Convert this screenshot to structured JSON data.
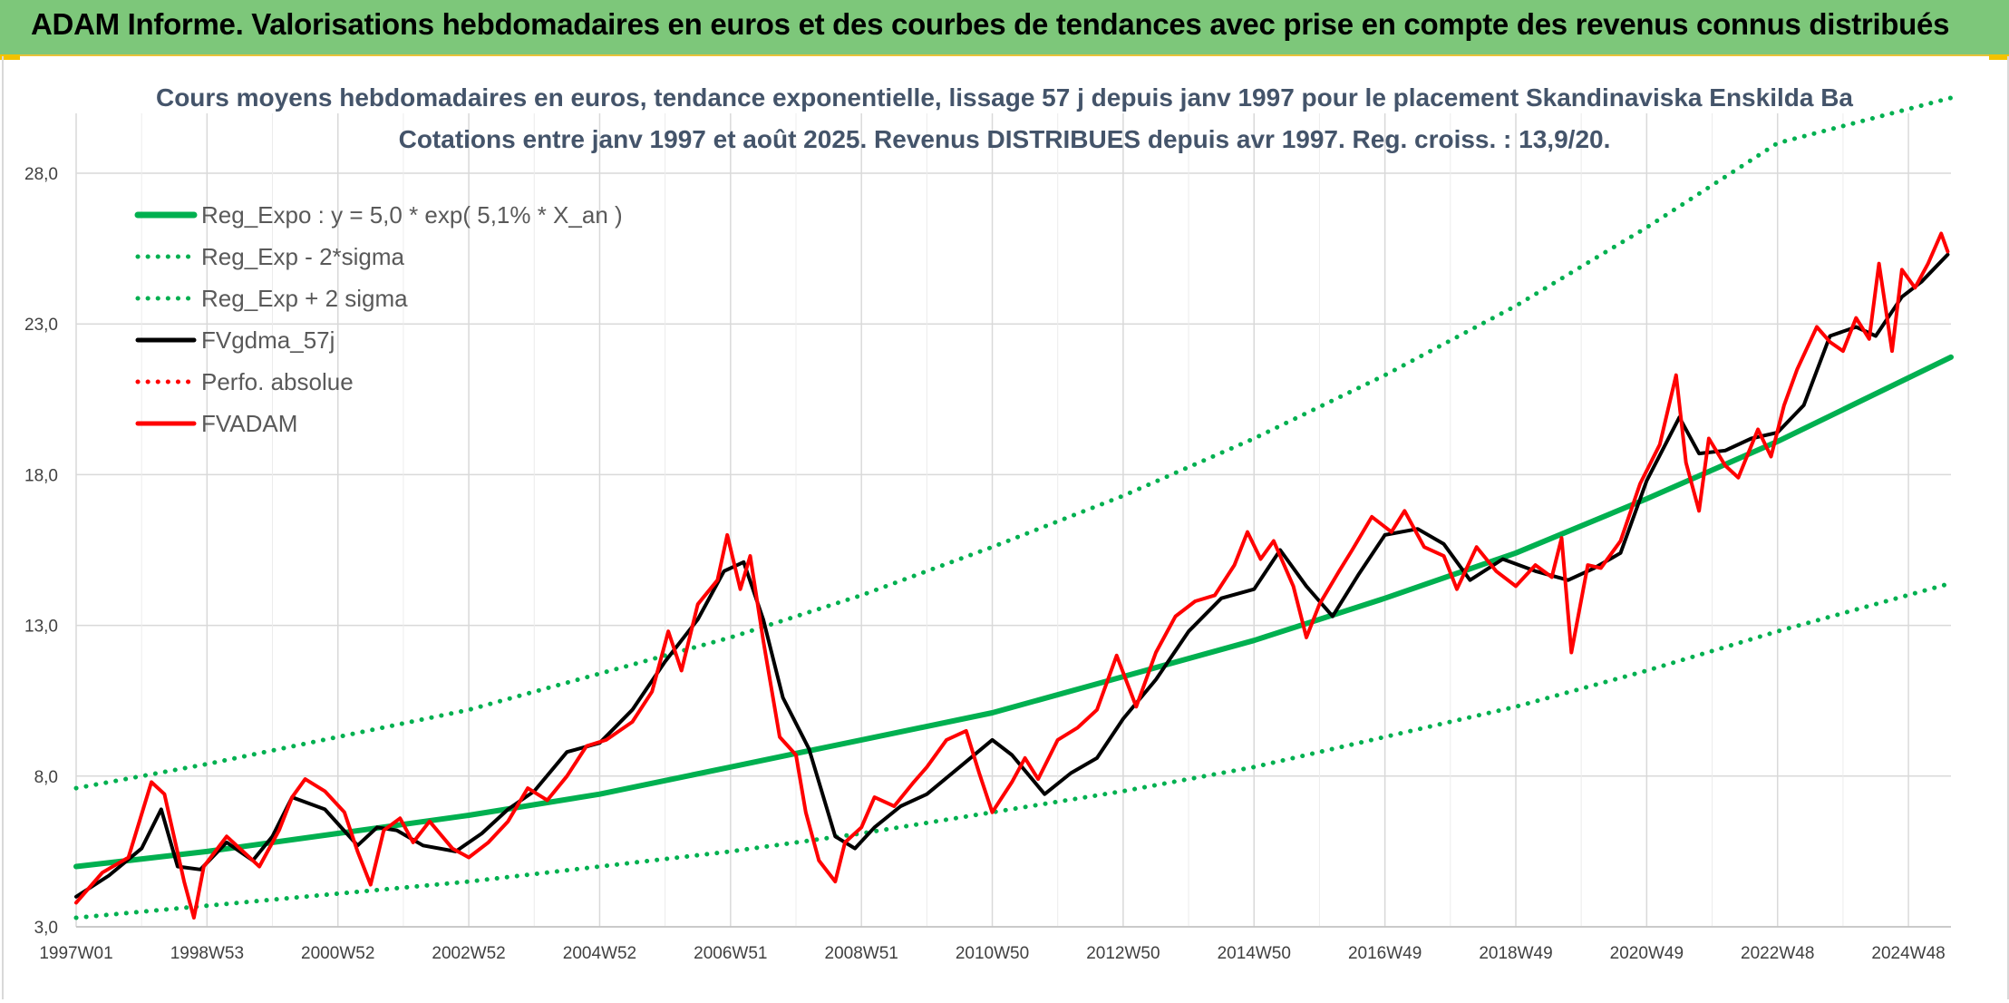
{
  "header": {
    "title": "ADAM Informe. Valorisations hebdomadaires en euros et des courbes de tendances avec prise en compte des revenus connus distribués"
  },
  "colors": {
    "banner": "#7dc77a",
    "trend": "#00b050",
    "bands": "#00b050",
    "smoothed": "#000000",
    "absolute_perf": "#ff0000",
    "price": "#ff0000",
    "title_text": "#44546a"
  },
  "chart_data": {
    "type": "line",
    "title": "Cours moyens hebdomadaires en euros, tendance exponentielle, lissage 57 j depuis janv 1997 pour le placement Skandinaviska Enskilda Ba",
    "subtitle": "Cotations entre janv 1997 et août 2025. Revenus DISTRIBUES depuis avr 1997. Reg. croiss. : 13,9/20.",
    "xlabel": "",
    "ylabel": "",
    "x_range": [
      1997.0,
      2025.65
    ],
    "ylim": [
      3.0,
      30.5
    ],
    "y_ticks": [
      3.0,
      8.0,
      13.0,
      18.0,
      23.0,
      28.0
    ],
    "y_tick_labels": [
      "3,0",
      "8,0",
      "13,0",
      "18,0",
      "23,0",
      "28,0"
    ],
    "x_ticks": [
      1997.0,
      1999.0,
      2001.0,
      2003.0,
      2005.0,
      2007.0,
      2009.0,
      2011.0,
      2013.0,
      2015.0,
      2017.0,
      2019.0,
      2021.0,
      2023.0,
      2025.0
    ],
    "x_tick_labels": [
      "1997W01",
      "1998W53",
      "2000W52",
      "2002W52",
      "2004W52",
      "2006W51",
      "2008W51",
      "2010W50",
      "2012W50",
      "2014W50",
      "2016W49",
      "2018W49",
      "2020W49",
      "2022W48",
      "2024W48"
    ],
    "grid": true,
    "legend_position": "top-left",
    "legend": [
      {
        "label": "Reg_Expo : y = 5,0 * exp( 5,1% *  X_an )",
        "style": "solid-thick",
        "color": "#00b050"
      },
      {
        "label": "Reg_Exp - 2*sigma",
        "style": "dotted",
        "color": "#00b050"
      },
      {
        "label": "Reg_Exp + 2 sigma",
        "style": "dotted",
        "color": "#00b050"
      },
      {
        "label": "FVgdma_57j",
        "style": "solid",
        "color": "#000000"
      },
      {
        "label": "Perfo. absolue",
        "style": "dotted",
        "color": "#ff0000"
      },
      {
        "label": "FVADAM",
        "style": "solid",
        "color": "#ff0000"
      }
    ],
    "series": [
      {
        "name": "Reg_Expo : y = 5,0 * exp( 5,1% *  X_an )",
        "x": [
          1997.0,
          1999.0,
          2001.0,
          2003.0,
          2005.0,
          2007.0,
          2009.0,
          2011.0,
          2013.0,
          2015.0,
          2017.0,
          2019.0,
          2021.0,
          2023.0,
          2025.65
        ],
        "y": [
          5.0,
          5.5,
          6.1,
          6.7,
          7.4,
          8.3,
          9.2,
          10.1,
          11.3,
          12.5,
          13.9,
          15.4,
          17.2,
          19.1,
          21.9
        ]
      },
      {
        "name": "Reg_Exp - 2*sigma",
        "x": [
          1997.0,
          1999.0,
          2001.0,
          2003.0,
          2005.0,
          2007.0,
          2009.0,
          2011.0,
          2013.0,
          2015.0,
          2017.0,
          2019.0,
          2021.0,
          2023.0,
          2025.65
        ],
        "y": [
          3.3,
          3.7,
          4.1,
          4.5,
          5.0,
          5.5,
          6.1,
          6.8,
          7.5,
          8.3,
          9.3,
          10.3,
          11.5,
          12.8,
          14.4
        ]
      },
      {
        "name": "Reg_Exp + 2 sigma",
        "x": [
          1997.0,
          1999.0,
          2001.0,
          2003.0,
          2005.0,
          2007.0,
          2009.0,
          2011.0,
          2013.0,
          2015.0,
          2017.0,
          2019.0,
          2021.0,
          2023.0,
          2025.65
        ],
        "y": [
          7.6,
          8.4,
          9.3,
          10.2,
          11.4,
          12.6,
          14.0,
          15.6,
          17.3,
          19.2,
          21.3,
          23.6,
          26.2,
          29.0,
          30.5
        ]
      },
      {
        "name": "FVgdma_57j",
        "x": [
          1997.0,
          1997.5,
          1998.0,
          1998.3,
          1998.55,
          1998.9,
          1999.3,
          1999.7,
          2000.0,
          2000.3,
          2000.8,
          2001.3,
          2001.6,
          2001.9,
          2002.3,
          2002.8,
          2003.2,
          2003.6,
          2004.0,
          2004.5,
          2005.0,
          2005.5,
          2006.0,
          2006.5,
          2006.9,
          2007.2,
          2007.5,
          2007.8,
          2008.2,
          2008.6,
          2008.9,
          2009.2,
          2009.6,
          2010.0,
          2010.5,
          2011.0,
          2011.3,
          2011.8,
          2012.2,
          2012.6,
          2013.0,
          2013.5,
          2014.0,
          2014.5,
          2015.0,
          2015.4,
          2015.8,
          2016.2,
          2016.6,
          2017.0,
          2017.5,
          2017.9,
          2018.3,
          2018.8,
          2019.3,
          2019.8,
          2020.2,
          2020.6,
          2021.0,
          2021.5,
          2021.8,
          2022.2,
          2022.6,
          2023.0,
          2023.4,
          2023.8,
          2024.2,
          2024.5,
          2024.9,
          2025.2,
          2025.6
        ],
        "y": [
          4.0,
          4.7,
          5.6,
          6.9,
          5.0,
          4.9,
          5.8,
          5.2,
          6.0,
          7.3,
          6.9,
          5.7,
          6.3,
          6.2,
          5.7,
          5.5,
          6.1,
          6.9,
          7.5,
          8.8,
          9.1,
          10.2,
          11.8,
          13.2,
          14.8,
          15.1,
          13.2,
          10.6,
          8.9,
          6.0,
          5.6,
          6.3,
          7.0,
          7.4,
          8.3,
          9.2,
          8.7,
          7.4,
          8.1,
          8.6,
          9.9,
          11.2,
          12.8,
          13.9,
          14.2,
          15.5,
          14.3,
          13.3,
          14.7,
          16.0,
          16.2,
          15.7,
          14.5,
          15.2,
          14.8,
          14.5,
          14.9,
          15.4,
          17.8,
          19.9,
          18.7,
          18.8,
          19.2,
          19.4,
          20.3,
          22.6,
          22.9,
          22.6,
          23.9,
          24.4,
          25.3
        ]
      },
      {
        "name": "FVADAM",
        "x": [
          1997.0,
          1997.4,
          1997.8,
          1998.15,
          1998.35,
          1998.65,
          1998.8,
          1998.95,
          1999.3,
          1999.6,
          1999.8,
          2000.1,
          2000.3,
          2000.5,
          2000.8,
          2001.1,
          2001.3,
          2001.5,
          2001.7,
          2001.95,
          2002.15,
          2002.4,
          2002.75,
          2003.0,
          2003.3,
          2003.6,
          2003.9,
          2004.2,
          2004.5,
          2004.8,
          2005.1,
          2005.5,
          2005.8,
          2006.05,
          2006.25,
          2006.5,
          2006.8,
          2006.95,
          2007.15,
          2007.3,
          2007.5,
          2007.75,
          2008.0,
          2008.15,
          2008.35,
          2008.6,
          2008.75,
          2009.0,
          2009.2,
          2009.5,
          2009.8,
          2010.0,
          2010.3,
          2010.6,
          2010.8,
          2011.0,
          2011.3,
          2011.5,
          2011.7,
          2012.0,
          2012.3,
          2012.6,
          2012.9,
          2013.2,
          2013.5,
          2013.8,
          2014.1,
          2014.4,
          2014.7,
          2014.9,
          2015.1,
          2015.3,
          2015.6,
          2015.8,
          2016.0,
          2016.3,
          2016.5,
          2016.8,
          2017.1,
          2017.3,
          2017.6,
          2017.9,
          2018.1,
          2018.4,
          2018.7,
          2019.0,
          2019.3,
          2019.55,
          2019.7,
          2019.85,
          2020.1,
          2020.3,
          2020.6,
          2020.9,
          2021.2,
          2021.45,
          2021.6,
          2021.8,
          2021.95,
          2022.2,
          2022.4,
          2022.7,
          2022.9,
          2023.1,
          2023.3,
          2023.6,
          2023.8,
          2024.0,
          2024.2,
          2024.4,
          2024.55,
          2024.75,
          2024.9,
          2025.1,
          2025.3,
          2025.5,
          2025.6
        ],
        "y": [
          3.8,
          4.8,
          5.3,
          7.8,
          7.4,
          4.5,
          3.3,
          5.0,
          6.0,
          5.4,
          5.0,
          6.2,
          7.3,
          7.9,
          7.5,
          6.8,
          5.5,
          4.4,
          6.2,
          6.6,
          5.8,
          6.5,
          5.6,
          5.3,
          5.8,
          6.5,
          7.6,
          7.2,
          8.0,
          9.0,
          9.2,
          9.8,
          10.8,
          12.8,
          11.5,
          13.7,
          14.5,
          16.0,
          14.2,
          15.3,
          12.5,
          9.3,
          8.7,
          6.8,
          5.2,
          4.5,
          5.8,
          6.3,
          7.3,
          7.0,
          7.8,
          8.3,
          9.2,
          9.5,
          8.1,
          6.8,
          7.8,
          8.6,
          7.9,
          9.2,
          9.6,
          10.2,
          12.0,
          10.3,
          12.1,
          13.3,
          13.8,
          14.0,
          15.0,
          16.1,
          15.2,
          15.8,
          14.3,
          12.6,
          13.7,
          14.8,
          15.5,
          16.6,
          16.1,
          16.8,
          15.6,
          15.3,
          14.2,
          15.6,
          14.8,
          14.3,
          15.0,
          14.6,
          15.9,
          12.1,
          15.0,
          14.9,
          15.8,
          17.7,
          19.0,
          21.3,
          18.4,
          16.8,
          19.2,
          18.3,
          17.9,
          19.5,
          18.6,
          20.3,
          21.5,
          22.9,
          22.4,
          22.1,
          23.2,
          22.5,
          25.0,
          22.1,
          24.8,
          24.2,
          25.0,
          26.0,
          25.4
        ]
      }
    ]
  }
}
